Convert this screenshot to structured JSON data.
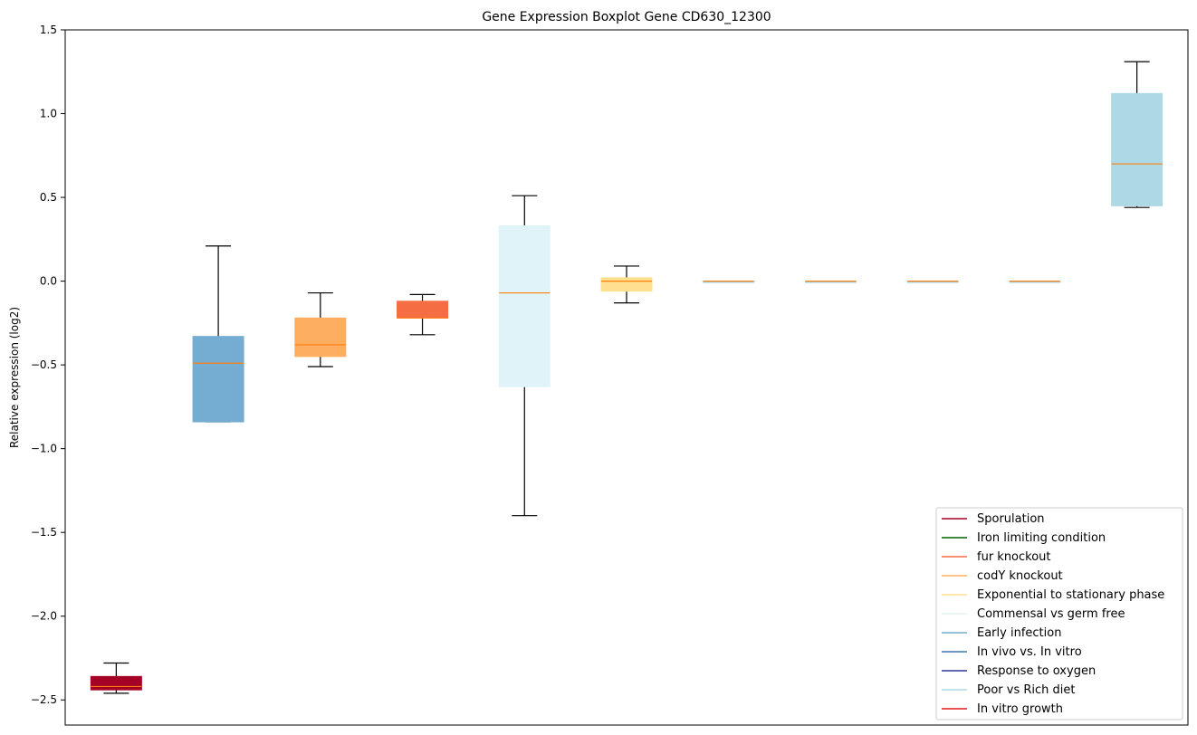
{
  "chart_data": {
    "type": "boxplot",
    "title": "Gene Expression Boxplot Gene CD630_12300",
    "xlabel": "",
    "ylabel": "Relative expression (log2)",
    "ylim": [
      -2.65,
      1.5
    ],
    "yticks": [
      -2.5,
      -2.0,
      -1.5,
      -1.0,
      -0.5,
      0.0,
      0.5,
      1.0,
      1.5
    ],
    "ytick_labels": [
      "−2.5",
      "−2.0",
      "−1.5",
      "−1.0",
      "−0.5",
      "0.0",
      "0.5",
      "1.0",
      "1.5"
    ],
    "grid": false,
    "legend_position": "bottom-right",
    "boxes": [
      {
        "color": "#a50026",
        "whisker_low": -2.46,
        "q1": -2.44,
        "median": -2.42,
        "q3": -2.36,
        "whisker_high": -2.28
      },
      {
        "color": "#74add1",
        "whisker_low": -0.84,
        "q1": -0.84,
        "median": -0.49,
        "q3": -0.33,
        "whisker_high": 0.21
      },
      {
        "color": "#fdae61",
        "whisker_low": -0.51,
        "q1": -0.45,
        "median": -0.38,
        "q3": -0.22,
        "whisker_high": -0.07
      },
      {
        "color": "#f46d43",
        "whisker_low": -0.32,
        "q1": -0.22,
        "median": -0.22,
        "q3": -0.12,
        "whisker_high": -0.08
      },
      {
        "color": "#e0f3f8",
        "whisker_low": -1.4,
        "q1": -0.63,
        "median": -0.07,
        "q3": 0.33,
        "whisker_high": 0.51
      },
      {
        "color": "#fee090",
        "whisker_low": -0.13,
        "q1": -0.06,
        "median": 0.0,
        "q3": 0.02,
        "whisker_high": 0.09
      },
      {
        "color": "#abd9e9",
        "whisker_low": 0.0,
        "q1": 0.0,
        "median": 0.0,
        "q3": 0.0,
        "whisker_high": 0.0
      },
      {
        "color": "#abd9e9",
        "whisker_low": 0.0,
        "q1": 0.0,
        "median": 0.0,
        "q3": 0.0,
        "whisker_high": 0.0
      },
      {
        "color": "#abd9e9",
        "whisker_low": 0.0,
        "q1": 0.0,
        "median": 0.0,
        "q3": 0.0,
        "whisker_high": 0.0
      },
      {
        "color": "#abd9e9",
        "whisker_low": 0.0,
        "q1": 0.0,
        "median": 0.0,
        "q3": 0.0,
        "whisker_high": 0.0
      },
      {
        "color": "#add8e6",
        "whisker_low": 0.44,
        "q1": 0.45,
        "median": 0.7,
        "q3": 1.12,
        "whisker_high": 1.31
      }
    ],
    "median_color": "#ff7f0e",
    "legend": [
      {
        "label": "Sporulation",
        "color": "#a50026"
      },
      {
        "label": "Iron limiting condition",
        "color": "#006400"
      },
      {
        "label": "fur knockout",
        "color": "#f46d43"
      },
      {
        "label": "codY knockout",
        "color": "#fdae61"
      },
      {
        "label": "Exponential to stationary phase",
        "color": "#fee090"
      },
      {
        "label": "Commensal vs germ free",
        "color": "#e0f3f8"
      },
      {
        "label": "Early infection",
        "color": "#74add1"
      },
      {
        "label": "In vivo vs. In vitro",
        "color": "#4575b4"
      },
      {
        "label": "Response to oxygen",
        "color": "#313695"
      },
      {
        "label": "Poor vs Rich diet",
        "color": "#add8e6"
      },
      {
        "label": "In vitro growth",
        "color": "#e41a1c"
      }
    ]
  }
}
